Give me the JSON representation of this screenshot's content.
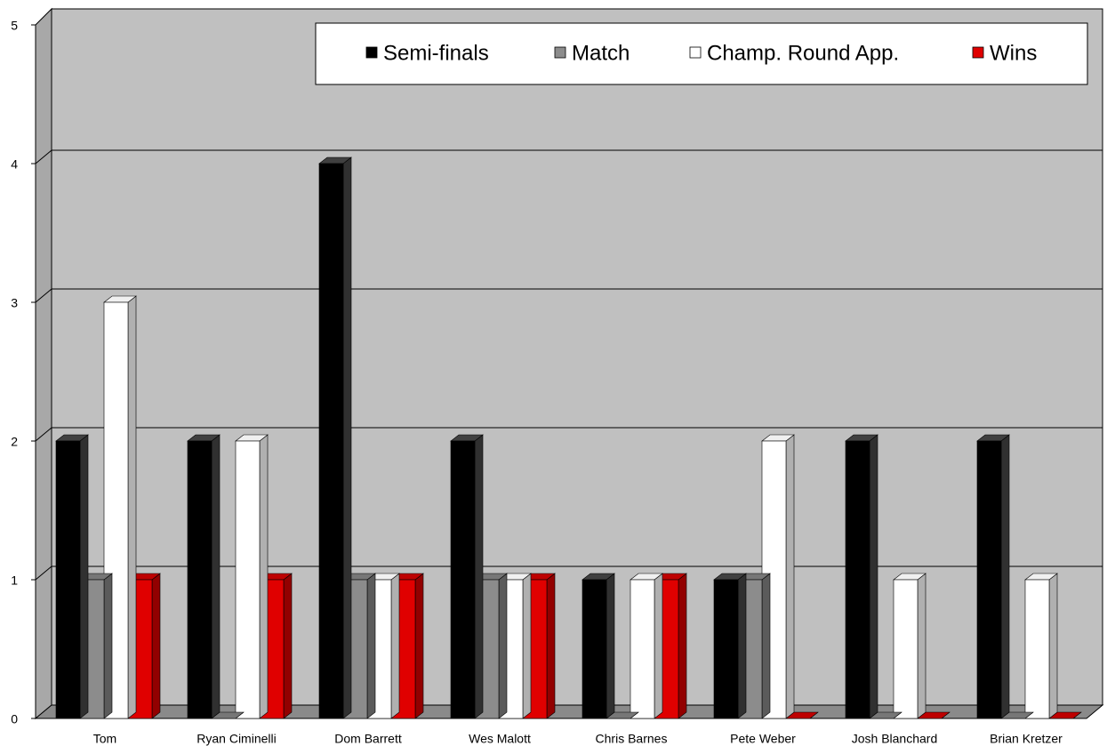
{
  "chart_data": {
    "type": "bar3d",
    "categories": [
      "Tom",
      "Ryan Ciminelli",
      "Dom Barrett",
      "Wes Malott",
      "Chris Barnes",
      "Pete Weber",
      "Josh Blanchard",
      "Brian Kretzer"
    ],
    "series": [
      {
        "name": "Semi-finals",
        "color": "#000000",
        "values": [
          2,
          2,
          4,
          2,
          1,
          1,
          2,
          2
        ]
      },
      {
        "name": "Match",
        "color": "#8c8c8c",
        "values": [
          1,
          0,
          1,
          1,
          0,
          1,
          0,
          0
        ]
      },
      {
        "name": "Champ. Round App.",
        "color": "#ffffff",
        "values": [
          3,
          2,
          1,
          1,
          1,
          2,
          1,
          1
        ]
      },
      {
        "name": "Wins",
        "color": "#e00000",
        "values": [
          1,
          1,
          1,
          1,
          1,
          0,
          0,
          0
        ]
      }
    ],
    "ylim": [
      0,
      5
    ],
    "yticks": [
      0,
      1,
      2,
      3,
      4,
      5
    ],
    "grid": true
  }
}
